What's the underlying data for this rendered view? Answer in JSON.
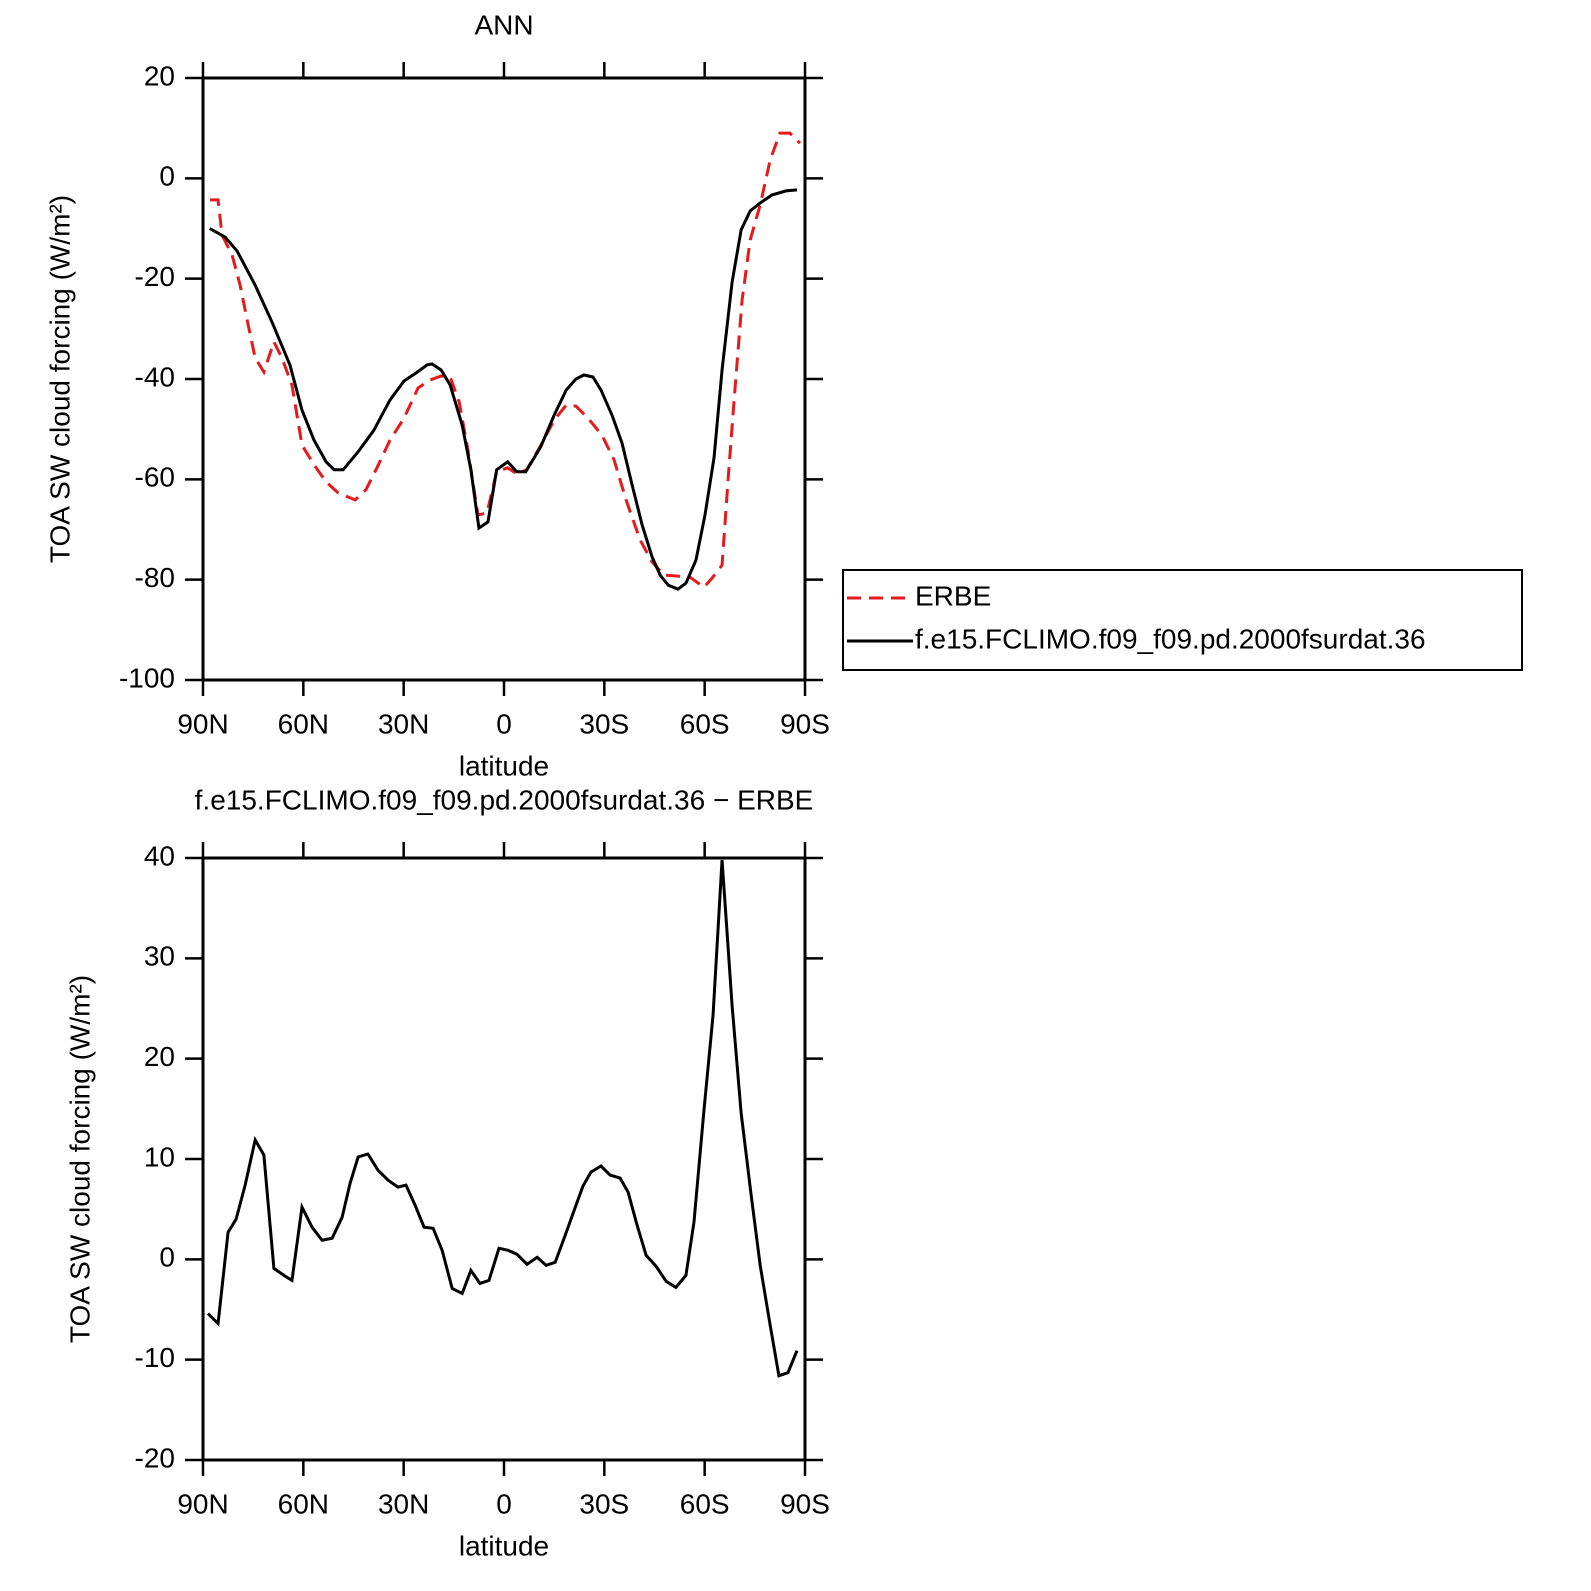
{
  "chart_data": [
    {
      "type": "line",
      "title": "ANN",
      "xlabel": "latitude",
      "ylabel": "TOA SW cloud forcing (W/m²)",
      "xlim": [
        90,
        -90
      ],
      "xticks": [
        {
          "value": 90,
          "label": "90N"
        },
        {
          "value": 60,
          "label": "60N"
        },
        {
          "value": 30,
          "label": "30N"
        },
        0,
        {
          "value": -30,
          "label": "30S"
        },
        {
          "value": -60,
          "label": "60S"
        },
        {
          "value": -90,
          "label": "90S"
        }
      ],
      "ylim": [
        -100,
        20
      ],
      "yticks": [
        -100,
        -80,
        -60,
        -40,
        -20,
        0,
        20
      ],
      "legend": "right",
      "series": [
        {
          "name": "ERBE",
          "color": "#e41a1c",
          "dash": true,
          "x": [
            87.9,
            85.5,
            84.3,
            81.3,
            78.9,
            76.5,
            74.4,
            71.8,
            68.8,
            66.4,
            63.4,
            60.4,
            56.8,
            53.2,
            49.6,
            44.5,
            41.3,
            37.7,
            34.1,
            29.9,
            25.7,
            22.1,
            18.8,
            16.1,
            13.4,
            10.8,
            7.8,
            5.1,
            2.2,
            -1.1,
            -3.8,
            -6.8,
            -11,
            -15,
            -18.6,
            -21.5,
            -25.1,
            -29.3,
            -32.9,
            -36.5,
            -40.7,
            -44.3,
            -47.9,
            -52,
            -55.6,
            -59.8,
            -62.2,
            -65.2,
            -67,
            -68.8,
            -71.2,
            -73.6,
            -76.6,
            -79.6,
            -82.5,
            -85.5,
            -88.5
          ],
          "values": [
            -4.3,
            -4.3,
            -11.3,
            -15.3,
            -21.3,
            -29.2,
            -35.8,
            -38.6,
            -32.6,
            -35.8,
            -41.2,
            -53.2,
            -57.1,
            -60.5,
            -62.7,
            -64.1,
            -62.1,
            -57.3,
            -52.2,
            -47.8,
            -41.8,
            -40.2,
            -39.4,
            -39.6,
            -44.6,
            -54.1,
            -67.1,
            -66.7,
            -58.5,
            -57.7,
            -58.9,
            -58.1,
            -53.2,
            -48.2,
            -45.2,
            -45.4,
            -47.8,
            -51.2,
            -56.1,
            -64.1,
            -72.1,
            -76.5,
            -79.1,
            -79.3,
            -79.5,
            -81.5,
            -79.7,
            -77.1,
            -60.1,
            -44.2,
            -24.2,
            -12.3,
            -5.3,
            3.7,
            9,
            9,
            7
          ]
        },
        {
          "name": "f.e15.FCLIMO.f09_f09.pd.2000fsurdat.36",
          "color": "#000000",
          "dash": false,
          "x": [
            88,
            83.4,
            79.8,
            74.4,
            69.4,
            64,
            60.4,
            56.8,
            53.2,
            50.8,
            48.1,
            43.6,
            38.9,
            34.1,
            29.9,
            26.3,
            23,
            21.5,
            18.8,
            16.1,
            12.5,
            9.9,
            7.5,
            4.8,
            2.2,
            -1.1,
            -3.8,
            -6.5,
            -11,
            -15,
            -18.6,
            -21.5,
            -23.9,
            -26.6,
            -29,
            -32.3,
            -35.3,
            -38.3,
            -41.3,
            -44.3,
            -46.7,
            -49.1,
            -52,
            -54.4,
            -57.4,
            -60.1,
            -62.8,
            -65.2,
            -68.2,
            -70.9,
            -73.6,
            -76.6,
            -80.2,
            -84.3,
            -87.6
          ],
          "values": [
            -10,
            -11.7,
            -14.5,
            -21.3,
            -28.6,
            -37.2,
            -46.2,
            -52.2,
            -56.5,
            -58.1,
            -58.1,
            -54.5,
            -50.2,
            -44.2,
            -40.4,
            -38.8,
            -37.2,
            -37,
            -38.2,
            -41.2,
            -49.2,
            -58.1,
            -69.7,
            -68.5,
            -58.1,
            -56.5,
            -58.5,
            -58.5,
            -53.5,
            -47.2,
            -42.2,
            -40,
            -39.2,
            -39.6,
            -42.2,
            -47.2,
            -52.8,
            -61.1,
            -69.1,
            -75.5,
            -79.1,
            -81.1,
            -81.9,
            -80.7,
            -76.1,
            -67.1,
            -55.7,
            -38.2,
            -20.7,
            -10.3,
            -6.5,
            -4.9,
            -3.3,
            -2.5,
            -2.3
          ]
        }
      ]
    },
    {
      "type": "line",
      "title": "f.e15.FCLIMO.f09_f09.pd.2000fsurdat.36 − ERBE",
      "xlabel": "latitude",
      "ylabel": "TOA SW cloud forcing (W/m²)",
      "xlim": [
        90,
        -90
      ],
      "xticks": [
        {
          "value": 90,
          "label": "90N"
        },
        {
          "value": 60,
          "label": "60N"
        },
        {
          "value": 30,
          "label": "30N"
        },
        0,
        {
          "value": -30,
          "label": "30S"
        },
        {
          "value": -60,
          "label": "60S"
        },
        {
          "value": -90,
          "label": "90S"
        }
      ],
      "ylim": [
        -20,
        40
      ],
      "yticks": [
        -20,
        -10,
        0,
        10,
        20,
        30,
        40
      ],
      "series": [
        {
          "color": "#000000",
          "dash": false,
          "x": [
            88.5,
            85.5,
            82.5,
            80.1,
            77.4,
            74.4,
            71.8,
            68.8,
            65.8,
            63.4,
            60.4,
            57.4,
            54.4,
            51.4,
            48.4,
            46,
            43.6,
            40.7,
            37.7,
            34.7,
            31.7,
            29.3,
            26.6,
            23.9,
            21.2,
            18.5,
            15.5,
            12.5,
            9.9,
            7.2,
            4.5,
            1.5,
            -1.2,
            -3.9,
            -6.9,
            -9.9,
            -12.6,
            -15.3,
            -18.3,
            -21,
            -23.6,
            -26,
            -29,
            -31.7,
            -34.7,
            -37.1,
            -39.8,
            -42.5,
            -45.5,
            -48.5,
            -51.4,
            -54.4,
            -56.8,
            -59.8,
            -62.5,
            -65.2,
            -68.2,
            -70.9,
            -73.9,
            -76.6,
            -79.6,
            -82.2,
            -84.9,
            -87.6
          ],
          "values": [
            -5.4,
            -6.4,
            2.7,
            4,
            7.4,
            11.9,
            10.4,
            -0.9,
            -1.6,
            -2.1,
            5.2,
            3.2,
            1.9,
            2.1,
            4.2,
            7.6,
            10.2,
            10.5,
            8.9,
            7.9,
            7.2,
            7.4,
            5.4,
            3.2,
            3.1,
            0.9,
            -2.9,
            -3.4,
            -1.1,
            -2.4,
            -2.1,
            1.1,
            0.9,
            0.5,
            -0.5,
            0.2,
            -0.6,
            -0.3,
            2.4,
            4.9,
            7.3,
            8.7,
            9.3,
            8.4,
            8.1,
            6.7,
            3.4,
            0.4,
            -0.7,
            -2.2,
            -2.8,
            -1.6,
            3.7,
            14.9,
            24.3,
            39.8,
            25.3,
            14.6,
            6.4,
            -0.6,
            -6.6,
            -11.6,
            -11.3,
            -9.1
          ]
        }
      ]
    }
  ]
}
